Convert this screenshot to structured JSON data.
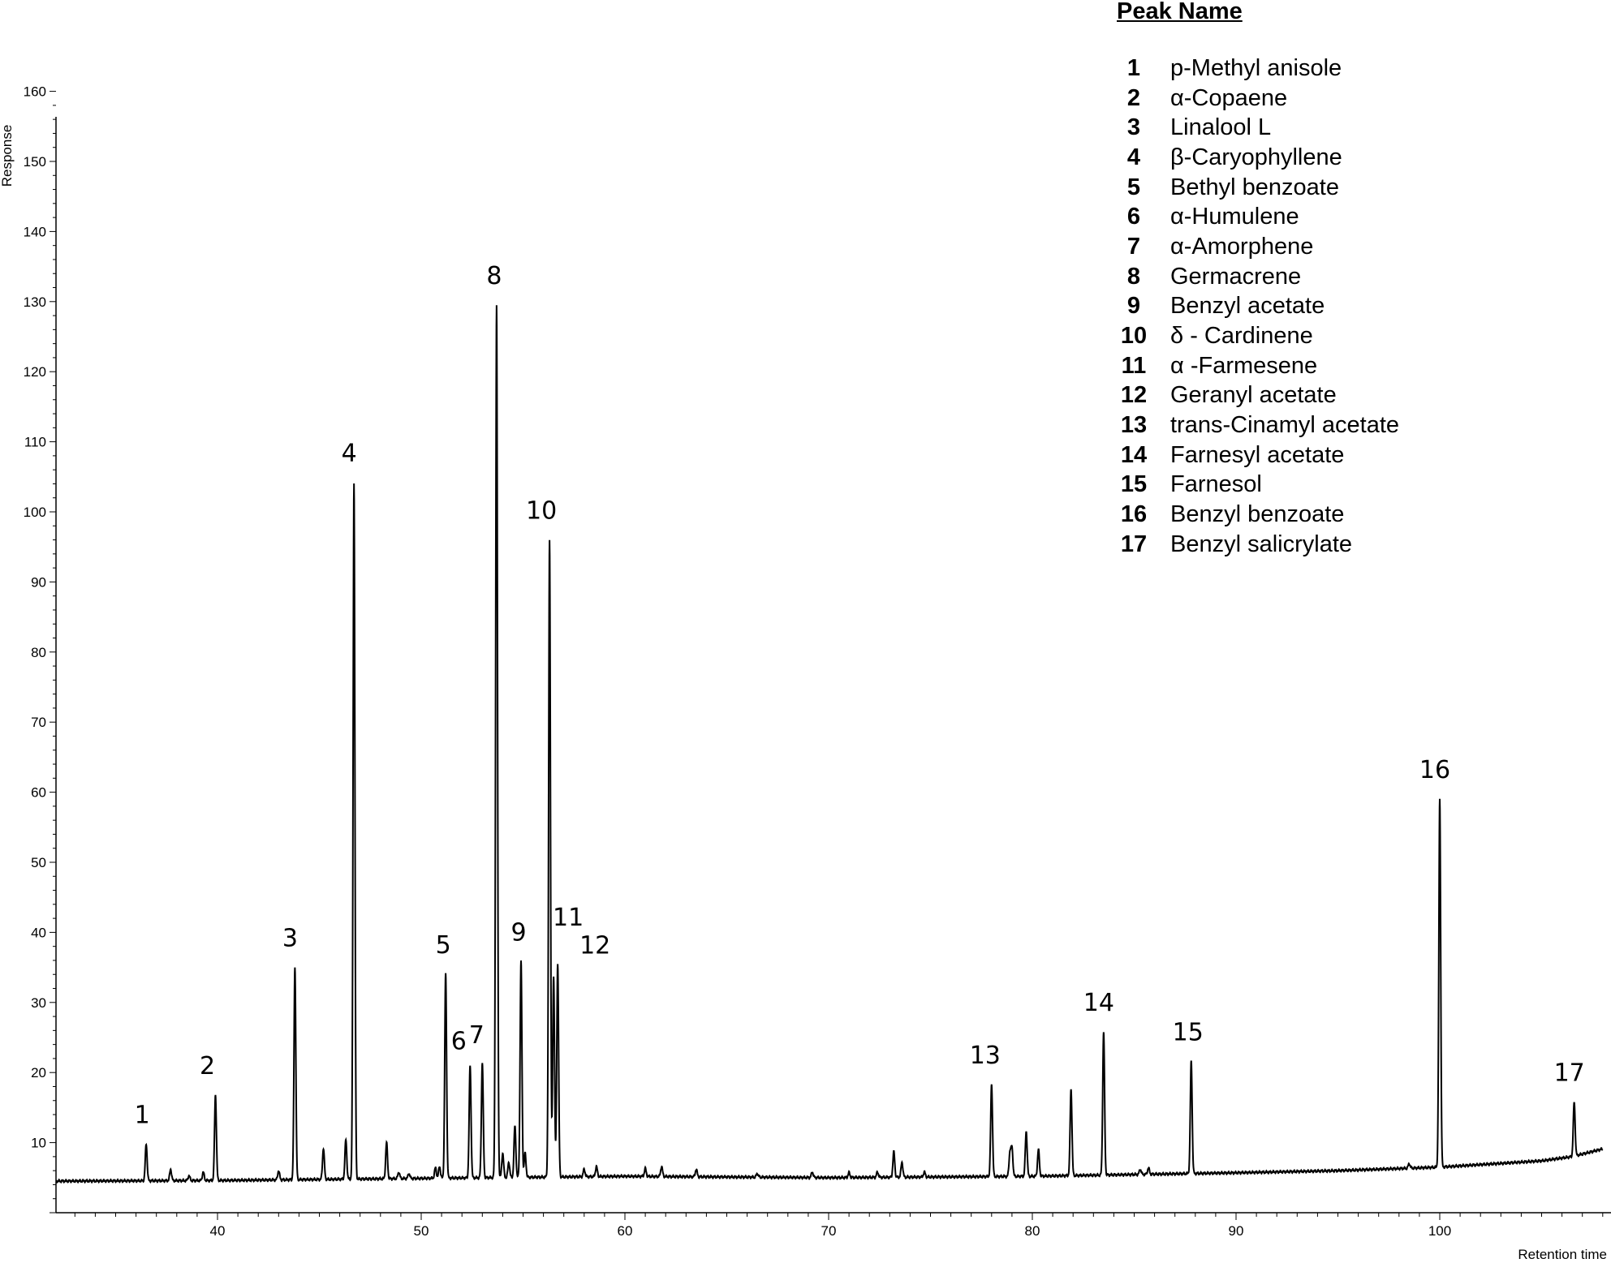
{
  "chart_data": {
    "type": "line",
    "title": "",
    "xlabel": "Retention time",
    "ylabel": "Response",
    "xlim": [
      31,
      108
    ],
    "ylim": [
      0,
      160
    ],
    "x_ticks": [
      40,
      50,
      60,
      70,
      80,
      90,
      100
    ],
    "y_ticks": [
      10,
      20,
      30,
      40,
      50,
      60,
      70,
      80,
      90,
      100,
      110,
      120,
      130,
      140,
      150,
      160
    ],
    "line_color": "#000000",
    "baseline": [
      [
        31.1,
        4.5
      ],
      [
        40,
        4.6
      ],
      [
        50,
        4.9
      ],
      [
        60,
        5.2
      ],
      [
        70,
        5.0
      ],
      [
        80,
        5.2
      ],
      [
        90,
        5.7
      ],
      [
        95,
        6.0
      ],
      [
        100,
        6.5
      ],
      [
        105,
        7.4
      ],
      [
        106.5,
        8.0
      ],
      [
        108,
        9.1
      ]
    ],
    "peaks": [
      {
        "x": 36.5,
        "y": 9.8,
        "label": "1"
      },
      {
        "x": 39.9,
        "y": 16.8,
        "label": "2"
      },
      {
        "x": 43.8,
        "y": 35.0,
        "label": "3"
      },
      {
        "x": 46.7,
        "y": 104.2,
        "label": "4"
      },
      {
        "x": 51.2,
        "y": 34.0,
        "label": "5"
      },
      {
        "x": 52.4,
        "y": 21.0,
        "label": "6"
      },
      {
        "x": 53.0,
        "y": 21.4,
        "label": "7"
      },
      {
        "x": 53.7,
        "y": 129.5,
        "label": "8"
      },
      {
        "x": 54.9,
        "y": 35.8,
        "label": "9"
      },
      {
        "x": 56.3,
        "y": 96.0,
        "label": "10"
      },
      {
        "x": 56.5,
        "y": 33.8,
        "label": "11"
      },
      {
        "x": 56.7,
        "y": 35.6,
        "label": "12"
      },
      {
        "x": 78.0,
        "y": 18.3,
        "label": "13"
      },
      {
        "x": 83.5,
        "y": 25.8,
        "label": "14"
      },
      {
        "x": 87.8,
        "y": 21.6,
        "label": "15"
      },
      {
        "x": 100.0,
        "y": 59.0,
        "label": "16"
      },
      {
        "x": 106.6,
        "y": 15.8,
        "label": "17"
      }
    ],
    "minor_peaks": [
      {
        "x": 37.7,
        "y": 6.2
      },
      {
        "x": 38.6,
        "y": 5.3
      },
      {
        "x": 39.3,
        "y": 5.8
      },
      {
        "x": 43.0,
        "y": 6.0
      },
      {
        "x": 45.2,
        "y": 9.2
      },
      {
        "x": 46.3,
        "y": 10.4
      },
      {
        "x": 48.3,
        "y": 10.0
      },
      {
        "x": 48.9,
        "y": 5.8
      },
      {
        "x": 49.4,
        "y": 5.6
      },
      {
        "x": 50.7,
        "y": 6.4
      },
      {
        "x": 50.9,
        "y": 6.6
      },
      {
        "x": 54.0,
        "y": 8.5
      },
      {
        "x": 54.3,
        "y": 7.2
      },
      {
        "x": 54.6,
        "y": 12.4
      },
      {
        "x": 55.1,
        "y": 8.5
      },
      {
        "x": 58.0,
        "y": 6.2
      },
      {
        "x": 58.6,
        "y": 6.6
      },
      {
        "x": 61.0,
        "y": 6.3
      },
      {
        "x": 61.8,
        "y": 6.6
      },
      {
        "x": 63.5,
        "y": 6.2
      },
      {
        "x": 66.5,
        "y": 5.6
      },
      {
        "x": 69.2,
        "y": 5.8
      },
      {
        "x": 71.0,
        "y": 5.7
      },
      {
        "x": 72.4,
        "y": 5.8
      },
      {
        "x": 73.2,
        "y": 8.7
      },
      {
        "x": 73.6,
        "y": 7.2
      },
      {
        "x": 74.7,
        "y": 5.8
      },
      {
        "x": 78.9,
        "y": 8.6
      },
      {
        "x": 79.0,
        "y": 9.2
      },
      {
        "x": 79.7,
        "y": 11.6
      },
      {
        "x": 80.3,
        "y": 9.0
      },
      {
        "x": 81.9,
        "y": 17.6
      },
      {
        "x": 85.3,
        "y": 6.2
      },
      {
        "x": 85.7,
        "y": 6.4
      },
      {
        "x": 98.5,
        "y": 7.0
      }
    ]
  },
  "legend": {
    "title": "Peak Name",
    "entries": [
      {
        "num": "1",
        "name": "p-Methyl anisole"
      },
      {
        "num": "2",
        "name": "α-Copaene"
      },
      {
        "num": "3",
        "name": "Linalool L"
      },
      {
        "num": "4",
        "name": "β-Caryophyllene"
      },
      {
        "num": "5",
        "name": "Bethyl benzoate"
      },
      {
        "num": "6",
        "name": "α-Humulene"
      },
      {
        "num": "7",
        "name": "α-Amorphene"
      },
      {
        "num": "8",
        "name": "Germacrene"
      },
      {
        "num": "9",
        "name": "Benzyl acetate"
      },
      {
        "num": "10",
        "name": "δ - Cardinene"
      },
      {
        "num": "11",
        "name": "α -Farmesene"
      },
      {
        "num": "12",
        "name": "Geranyl acetate"
      },
      {
        "num": "13",
        "name": "trans-Cinamyl acetate"
      },
      {
        "num": "14",
        "name": "Farnesyl acetate"
      },
      {
        "num": "15",
        "name": "Farnesol"
      },
      {
        "num": "16",
        "name": "Benzyl benzoate"
      },
      {
        "num": "17",
        "name": "Benzyl salicrylate"
      }
    ]
  }
}
